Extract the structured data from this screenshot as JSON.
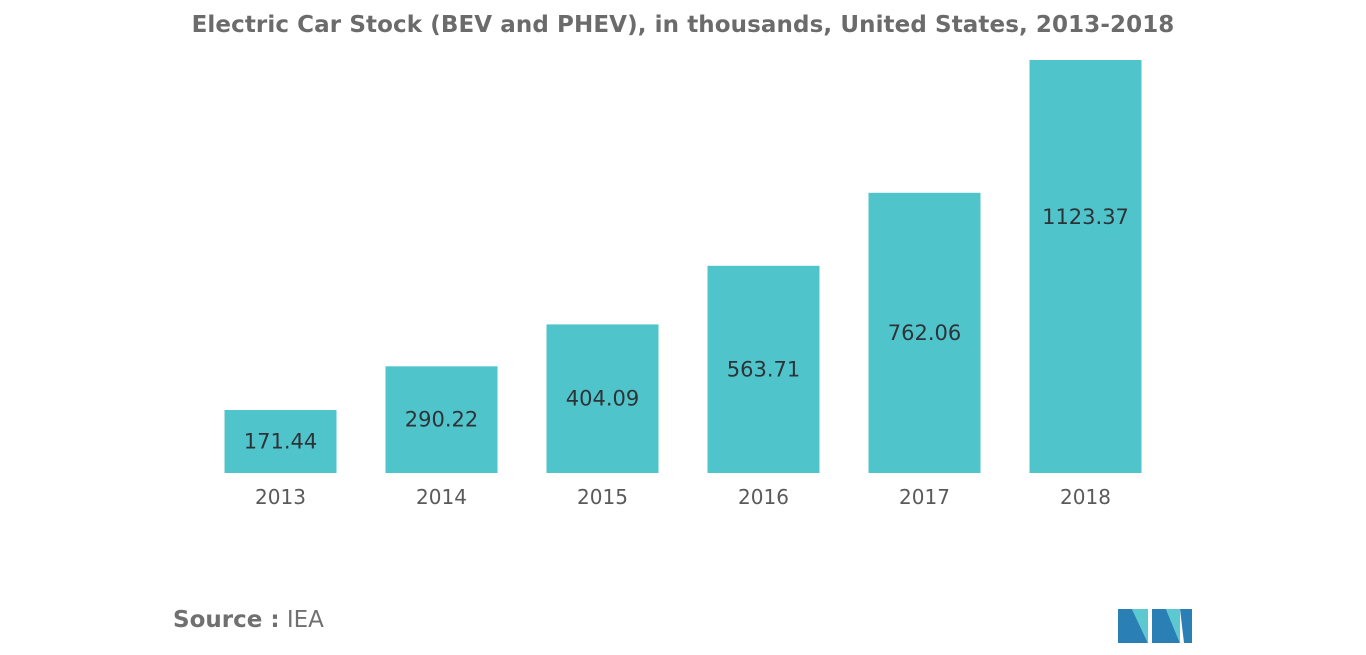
{
  "colors": {
    "bar": "#50c4cb",
    "title": "#6b6b6b",
    "source": "#707070",
    "logo_dark": "#2a7fb5",
    "logo_light": "#5cc8d0"
  },
  "chart_data": {
    "type": "bar",
    "title": "Electric Car Stock (BEV and PHEV), in thousands, United States, 2013-2018",
    "xlabel": "",
    "ylabel": "",
    "categories": [
      "2013",
      "2014",
      "2015",
      "2016",
      "2017",
      "2018"
    ],
    "values": [
      171.44,
      290.22,
      404.09,
      563.71,
      762.06,
      1123.37
    ],
    "value_labels": [
      "171.44",
      "290.22",
      "404.09",
      "563.71",
      "762.06",
      "1123.37"
    ],
    "ylim": [
      0,
      1123.37
    ],
    "grid": false,
    "legend": "none"
  },
  "source": {
    "label": "Source :",
    "value": "IEA"
  },
  "logo": {
    "icon": "mordor-intelligence-logo"
  }
}
